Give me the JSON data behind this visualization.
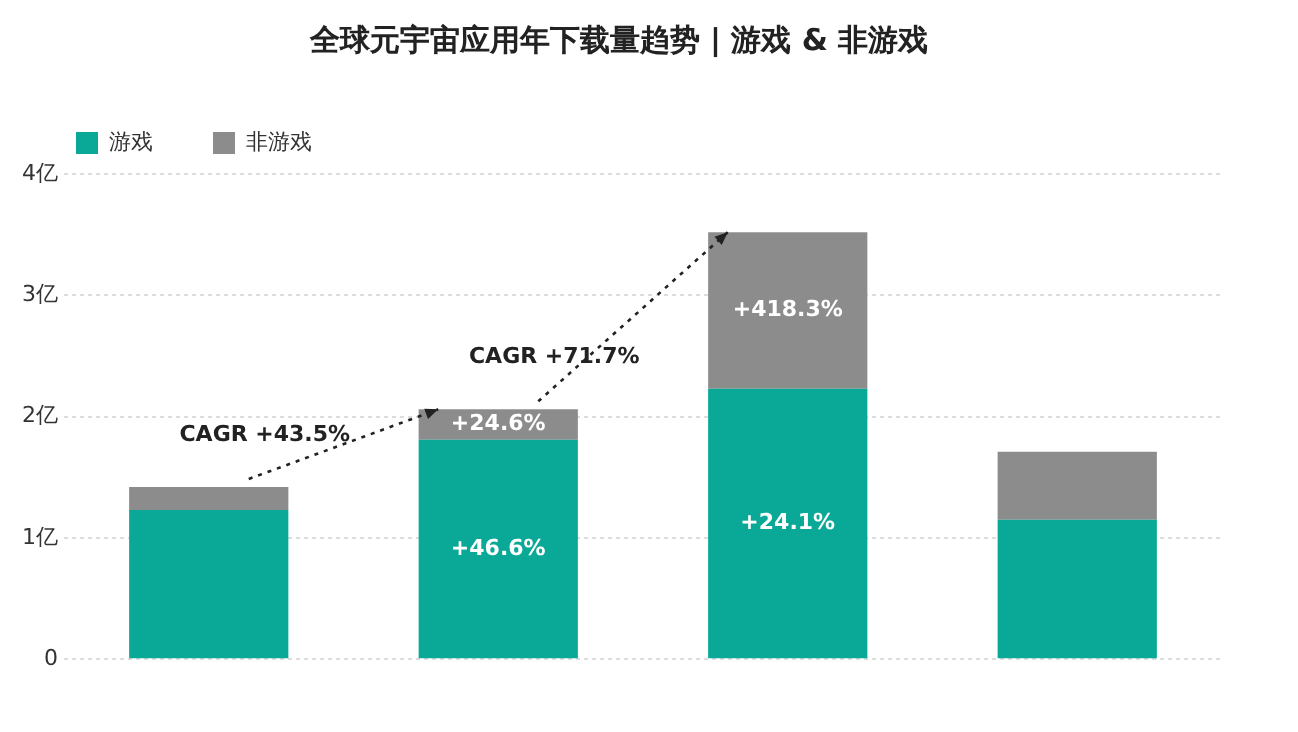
{
  "chart_data": {
    "type": "bar",
    "title": "全球元宇宙应用年下载量趋势 | 游戏 & 非游戏",
    "categories": [
      null,
      null,
      null,
      null
    ],
    "stacked": true,
    "series": [
      {
        "name": "游戏",
        "color": "#0aa896",
        "values": [
          1.23,
          1.81,
          2.23,
          1.15
        ]
      },
      {
        "name": "非游戏",
        "color": "#8c8c8c",
        "values": [
          0.19,
          0.25,
          1.29,
          0.56
        ]
      }
    ],
    "ylim": [
      0,
      4
    ],
    "yticks": [
      {
        "value": 0,
        "label": "0"
      },
      {
        "value": 1,
        "label": "1亿"
      },
      {
        "value": 2,
        "label": "2亿"
      },
      {
        "value": 3,
        "label": "3亿"
      },
      {
        "value": 4,
        "label": "4亿"
      }
    ],
    "grid": "y",
    "legend": "top left",
    "annotations": [
      "CAGR +43.5%",
      "CAGR +71.7%",
      "+46.6%",
      "+24.6%",
      "+24.1%",
      "+418.3%"
    ]
  }
}
